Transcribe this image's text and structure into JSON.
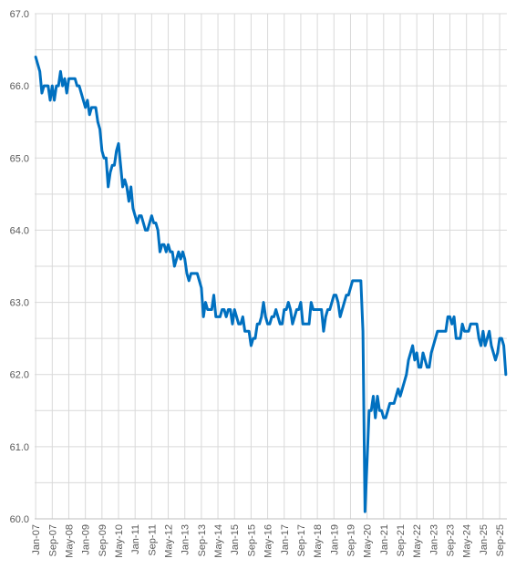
{
  "chart_data": {
    "type": "line",
    "color": "#0070c0",
    "grid": true,
    "ylim": [
      60,
      67
    ],
    "yticks": [
      {
        "value": 60,
        "label": "60.0"
      },
      {
        "value": 61,
        "label": "61.0"
      },
      {
        "value": 62,
        "label": "62.0"
      },
      {
        "value": 63,
        "label": "63.0"
      },
      {
        "value": 64,
        "label": "64.0"
      },
      {
        "value": 65,
        "label": "65.0"
      },
      {
        "value": 66,
        "label": "66.0"
      },
      {
        "value": 67,
        "label": "67.0"
      }
    ],
    "yminorticks": [
      60.5,
      61.5,
      62.5,
      63.5,
      64.5,
      65.5,
      66.5
    ],
    "categories": [
      "Jan-07",
      null,
      null,
      null,
      null,
      null,
      null,
      null,
      "Sep-07",
      null,
      null,
      null,
      null,
      null,
      null,
      null,
      "May-08",
      null,
      null,
      null,
      null,
      null,
      null,
      null,
      "Jan-09",
      null,
      null,
      null,
      null,
      null,
      null,
      null,
      "Sep-09",
      null,
      null,
      null,
      null,
      null,
      null,
      null,
      "May-10",
      null,
      null,
      null,
      null,
      null,
      null,
      null,
      "Jan-11",
      null,
      null,
      null,
      null,
      null,
      null,
      null,
      "Sep-11",
      null,
      null,
      null,
      null,
      null,
      null,
      null,
      "May-12",
      null,
      null,
      null,
      null,
      null,
      null,
      null,
      "Jan-13",
      null,
      null,
      null,
      null,
      null,
      null,
      null,
      "Sep-13",
      null,
      null,
      null,
      null,
      null,
      null,
      null,
      "May-14",
      null,
      null,
      null,
      null,
      null,
      null,
      null,
      "Jan-15",
      null,
      null,
      null,
      null,
      null,
      null,
      null,
      "Sep-15",
      null,
      null,
      null,
      null,
      null,
      null,
      null,
      "May-16",
      null,
      null,
      null,
      null,
      null,
      null,
      null,
      "Jan-17",
      null,
      null,
      null,
      null,
      null,
      null,
      null,
      "Sep-17",
      null,
      null,
      null,
      null,
      null,
      null,
      null,
      "May-18",
      null,
      null,
      null,
      null,
      null,
      null,
      null,
      "Jan-19",
      null,
      null,
      null,
      null,
      null,
      null,
      null,
      "Sep-19",
      null,
      null,
      null,
      null,
      null,
      null,
      null,
      "May-20",
      null,
      null,
      null,
      null,
      null,
      null,
      null,
      "Jan-21",
      null,
      null,
      null,
      null,
      null,
      null,
      null,
      "Sep-21",
      null,
      null,
      null,
      null,
      null,
      null,
      null,
      "May-22",
      null,
      null,
      null,
      null,
      null,
      null,
      null,
      "Jan-23",
      null,
      null,
      null,
      null,
      null,
      null,
      null,
      "Sep-23",
      null,
      null,
      null,
      null,
      null,
      null,
      null,
      "May-24",
      null,
      null,
      null,
      null,
      null,
      null,
      null,
      "Jan-25",
      null,
      null,
      null,
      null,
      null,
      null,
      null,
      "Sep-25",
      null,
      null,
      null
    ],
    "values": [
      66.4,
      66.3,
      66.2,
      65.9,
      66.0,
      66.0,
      66.0,
      65.8,
      66.0,
      65.8,
      66.0,
      66.0,
      66.2,
      66.0,
      66.1,
      65.9,
      66.1,
      66.1,
      66.1,
      66.1,
      66.0,
      66.0,
      65.9,
      65.8,
      65.7,
      65.8,
      65.6,
      65.7,
      65.7,
      65.7,
      65.5,
      65.4,
      65.1,
      65.0,
      65.0,
      64.6,
      64.8,
      64.9,
      64.9,
      65.1,
      65.2,
      64.9,
      64.6,
      64.7,
      64.6,
      64.4,
      64.6,
      64.3,
      64.2,
      64.1,
      64.2,
      64.2,
      64.1,
      64.0,
      64.0,
      64.1,
      64.2,
      64.1,
      64.1,
      64.0,
      63.7,
      63.8,
      63.8,
      63.7,
      63.8,
      63.7,
      63.7,
      63.5,
      63.6,
      63.7,
      63.6,
      63.7,
      63.6,
      63.4,
      63.3,
      63.4,
      63.4,
      63.4,
      63.4,
      63.3,
      63.2,
      62.8,
      63.0,
      62.9,
      62.9,
      62.9,
      63.1,
      62.8,
      62.8,
      62.8,
      62.9,
      62.9,
      62.8,
      62.9,
      62.9,
      62.7,
      62.9,
      62.8,
      62.7,
      62.7,
      62.8,
      62.6,
      62.6,
      62.6,
      62.4,
      62.5,
      62.5,
      62.7,
      62.7,
      62.8,
      63.0,
      62.8,
      62.7,
      62.7,
      62.8,
      62.8,
      62.9,
      62.8,
      62.7,
      62.7,
      62.9,
      62.9,
      63.0,
      62.9,
      62.7,
      62.8,
      62.9,
      62.9,
      63.0,
      62.7,
      62.7,
      62.7,
      62.7,
      63.0,
      62.9,
      62.9,
      62.9,
      62.9,
      62.9,
      62.6,
      62.8,
      62.9,
      62.9,
      63.0,
      63.1,
      63.1,
      63.0,
      62.8,
      62.9,
      63.0,
      63.1,
      63.1,
      63.2,
      63.3,
      63.3,
      63.3,
      63.3,
      63.3,
      62.6,
      60.1,
      60.8,
      61.5,
      61.5,
      61.7,
      61.4,
      61.7,
      61.5,
      61.5,
      61.4,
      61.4,
      61.5,
      61.6,
      61.6,
      61.6,
      61.7,
      61.8,
      61.7,
      61.8,
      61.9,
      62.0,
      62.2,
      62.3,
      62.4,
      62.2,
      62.3,
      62.1,
      62.1,
      62.3,
      62.2,
      62.1,
      62.1,
      62.3,
      62.4,
      62.5,
      62.6,
      62.6,
      62.6,
      62.6,
      62.6,
      62.8,
      62.8,
      62.7,
      62.8,
      62.5,
      62.5,
      62.5,
      62.7,
      62.6,
      62.6,
      62.6,
      62.7,
      62.7,
      62.7,
      62.7,
      62.5,
      62.4,
      62.6,
      62.4,
      62.5,
      62.6,
      62.4,
      62.3,
      62.2,
      62.3,
      62.5,
      62.5,
      62.4,
      62.0
    ]
  }
}
